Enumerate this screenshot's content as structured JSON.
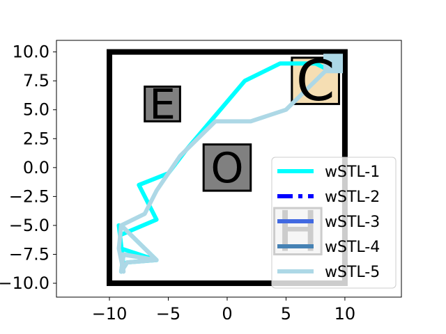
{
  "chart_data": {
    "type": "line",
    "title": "",
    "xlabel": "",
    "ylabel": "",
    "xlim": [
      -14.5,
      14.8
    ],
    "ylim": [
      -11.2,
      11.0
    ],
    "x_ticks": [
      -10,
      -5,
      0,
      5,
      10
    ],
    "x_tick_labels": [
      "−10",
      "−5",
      "0",
      "5",
      "10"
    ],
    "y_ticks": [
      10.0,
      7.5,
      5.0,
      2.5,
      0.0,
      -2.5,
      -5.0,
      -7.5,
      -10.0
    ],
    "y_tick_labels": [
      "10.0",
      "7.5",
      "5.0",
      "2.5",
      "0.0",
      "−2.5",
      "−5.0",
      "−7.5",
      "−10.0"
    ],
    "grid": false,
    "legend_position": "lower-right",
    "boundary": {
      "x": [
        -10,
        10
      ],
      "y": [
        -10,
        10
      ],
      "color": "#000000"
    },
    "regions": [
      {
        "label": "E",
        "x": [
          -7.0,
          -4.0
        ],
        "y": [
          4.0,
          7.0
        ],
        "color": "#808080",
        "font_size": 60
      },
      {
        "label": "O",
        "x": [
          -2.0,
          2.0
        ],
        "y": [
          -2.0,
          2.0
        ],
        "color": "#808080",
        "font_size": 60
      },
      {
        "label": "C",
        "x": [
          5.5,
          9.5
        ],
        "y": [
          5.5,
          9.5
        ],
        "color": "#f5deb3",
        "font_size": 80
      },
      {
        "label": "H",
        "x": [
          4.0,
          8.0
        ],
        "y": [
          -7.5,
          -3.5
        ],
        "color": "#d3d3d3",
        "font_size": 80
      }
    ],
    "series": [
      {
        "name": "wSTL-1",
        "color": "#00ffff",
        "dash": "solid",
        "width": 6,
        "x": [
          8.5,
          7.5,
          4.5,
          1.5,
          -1.0,
          -3.5,
          -5.0,
          -7.5,
          -6.0,
          -9.0,
          -9.2,
          -8.8,
          -9.0,
          -6.0,
          -8.5,
          -9.0,
          -8.8,
          -6.0,
          -9.0
        ],
        "y": [
          8.5,
          9.0,
          9.0,
          7.5,
          4.5,
          1.5,
          -0.5,
          -1.5,
          -4.5,
          -5.8,
          -5.0,
          -8.5,
          -7.0,
          -8.0,
          -8.2,
          -9.0,
          -7.5,
          -8.0,
          -5.0
        ]
      },
      {
        "name": "wSTL-2",
        "color": "#0000ff",
        "dash": "dashdot",
        "width": 6,
        "x": [],
        "y": []
      },
      {
        "name": "wSTL-3",
        "color": "#4169e1",
        "dash": "solid",
        "width": 6,
        "x": [],
        "y": []
      },
      {
        "name": "wSTL-4",
        "color": "#4682b4",
        "dash": "solid",
        "width": 6,
        "x": [],
        "y": []
      },
      {
        "name": "wSTL-5",
        "color": "#add8e6",
        "dash": "solid",
        "width": 6,
        "x": [
          9.0,
          5.0,
          2.0,
          -1.0,
          -4.0,
          -6.0,
          -7.0,
          -9.0,
          -9.2,
          -8.8,
          -9.0,
          -6.0,
          -8.5,
          -9.0,
          -8.8,
          -6.0,
          -9.0
        ],
        "y": [
          9.0,
          5.0,
          4.0,
          4.0,
          1.0,
          -2.0,
          -4.0,
          -5.0,
          -7.0,
          -9.0,
          -7.5,
          -8.0,
          -8.2,
          -9.0,
          -7.5,
          -8.0,
          -5.0
        ]
      }
    ],
    "endpoint_marker": {
      "x": 9.0,
      "y": 9.0,
      "color": "#add8e6"
    }
  }
}
